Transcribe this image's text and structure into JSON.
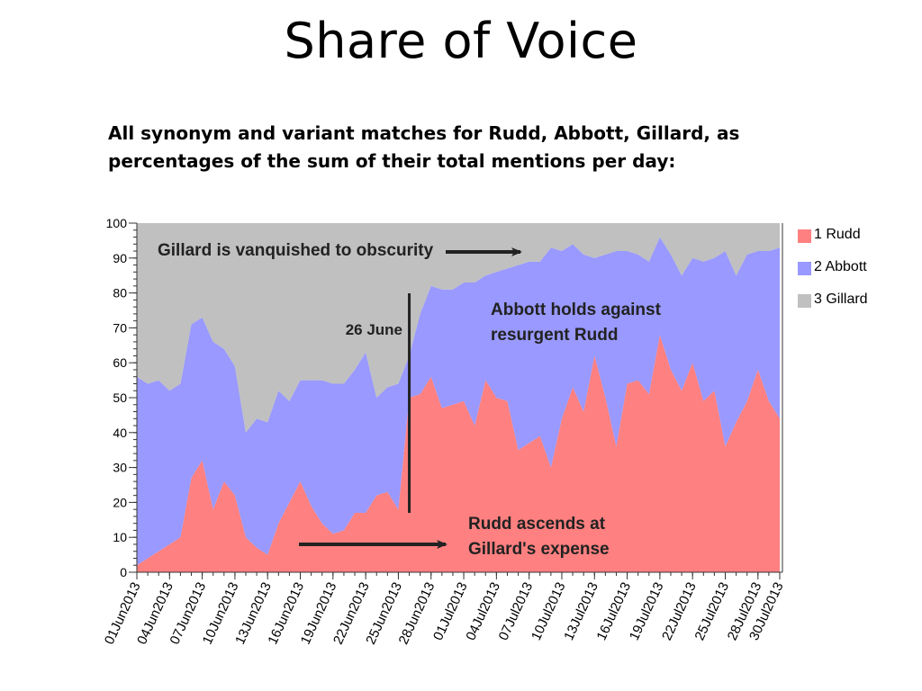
{
  "slide": {
    "title": "Share of Voice",
    "subtitle": "All synonym and variant matches for Rudd, Abbott, Gillard, as percentages of the sum of their total mentions per day:"
  },
  "chart_data": {
    "type": "area",
    "stacked": true,
    "title": "",
    "xlabel": "",
    "ylabel": "",
    "ylim": [
      0,
      100
    ],
    "y_ticks": [
      0,
      10,
      20,
      30,
      40,
      50,
      60,
      70,
      80,
      90,
      100
    ],
    "x_tick_labels": [
      "01Jun2013",
      "04Jun2013",
      "07Jun2013",
      "10Jun2013",
      "13Jun2013",
      "16Jun2013",
      "19Jun2013",
      "22Jun2013",
      "25Jun2013",
      "28Jun2013",
      "01Jul2013",
      "04Jul2013",
      "07Jul2013",
      "10Jul2013",
      "13Jul2013",
      "16Jul2013",
      "19Jul2013",
      "22Jul2013",
      "25Jul2013",
      "28Jul2013",
      "30Jul2013"
    ],
    "x_tick_index": [
      0,
      3,
      6,
      9,
      12,
      15,
      18,
      21,
      24,
      27,
      30,
      33,
      36,
      39,
      42,
      45,
      48,
      51,
      54,
      57,
      59
    ],
    "legend_position": "right",
    "series": [
      {
        "name": "1 Rudd",
        "color": "#FF8080",
        "values": [
          2,
          4,
          6,
          8,
          10,
          27,
          32,
          18,
          26,
          22,
          10,
          7,
          5,
          14,
          20,
          26,
          19,
          14,
          11,
          12,
          17,
          17,
          22,
          23,
          18,
          50,
          51,
          56,
          47,
          48,
          49,
          42,
          55,
          50,
          49,
          35,
          37,
          39,
          30,
          44,
          53,
          46,
          62,
          50,
          36,
          54,
          55,
          51,
          68,
          58,
          52,
          60,
          49,
          52,
          36,
          43,
          49,
          58,
          49,
          44
        ]
      },
      {
        "name": "2 Abbott",
        "color": "#9999FF",
        "values": [
          54,
          50,
          49,
          44,
          44,
          44,
          41,
          48,
          38,
          37,
          30,
          37,
          38,
          38,
          29,
          29,
          36,
          41,
          43,
          42,
          41,
          46,
          28,
          30,
          36,
          12,
          23,
          26,
          34,
          33,
          34,
          41,
          30,
          36,
          38,
          53,
          52,
          50,
          63,
          48,
          41,
          45,
          28,
          41,
          56,
          38,
          36,
          38,
          28,
          33,
          33,
          30,
          40,
          38,
          56,
          42,
          42,
          34,
          43,
          49
        ]
      },
      {
        "name": "3 Gillard",
        "color": "#C0C0C0",
        "values": [
          44,
          46,
          45,
          48,
          46,
          29,
          27,
          34,
          36,
          41,
          60,
          56,
          57,
          48,
          51,
          45,
          45,
          45,
          46,
          46,
          42,
          37,
          50,
          47,
          46,
          38,
          26,
          18,
          19,
          19,
          17,
          17,
          15,
          14,
          13,
          12,
          11,
          11,
          7,
          8,
          6,
          9,
          10,
          9,
          8,
          8,
          9,
          11,
          4,
          9,
          15,
          10,
          11,
          10,
          8,
          15,
          9,
          8,
          8,
          7
        ]
      }
    ],
    "annotations": [
      {
        "text": "Gillard is vanquished to obscurity",
        "arrow": "right"
      },
      {
        "text": "26 June",
        "vline_at_index": 25
      },
      {
        "text": "Abbott holds against resurgent Rudd"
      },
      {
        "text": "Rudd ascends at Gillard's expense",
        "arrow": "right"
      }
    ]
  }
}
